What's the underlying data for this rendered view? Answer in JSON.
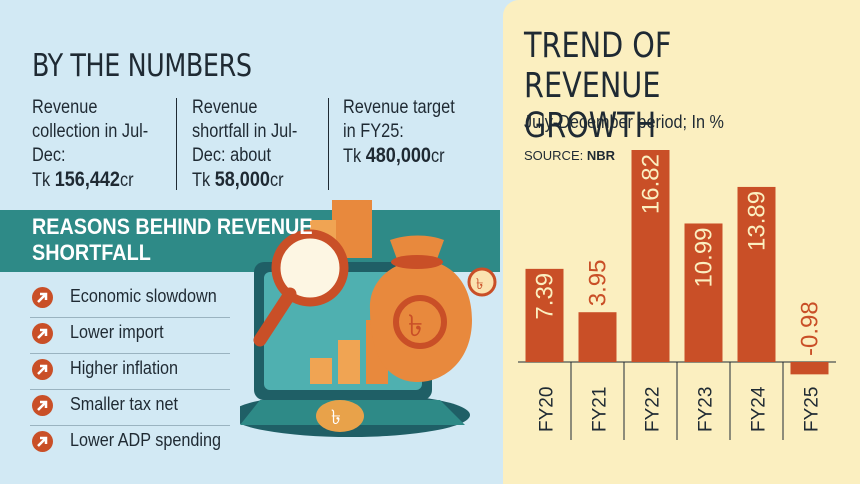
{
  "left": {
    "heading": "BY THE NUMBERS",
    "stats": [
      {
        "label": "Revenue collection in Jul-Dec:",
        "prefix": "Tk ",
        "amount": "156,442",
        "unit": "cr"
      },
      {
        "label": "Revenue shortfall in Jul-Dec: about",
        "prefix": "Tk ",
        "amount": "58,000",
        "unit": "cr"
      },
      {
        "label": "Revenue target in FY25:",
        "prefix": "Tk ",
        "amount": "480,000",
        "unit": "cr"
      }
    ],
    "reasons_heading": "REASONS BEHIND REVENUE SHORTFALL",
    "reasons": [
      "Economic slowdown",
      "Lower import",
      "Higher inflation",
      "Smaller tax net",
      "Lower ADP spending"
    ],
    "taka_symbol": "৳"
  },
  "colors": {
    "bar": "#c94f27",
    "panel": "#fbefc0",
    "teal": "#2e8a87",
    "background": "#d2e9f4",
    "text": "#1f2a33"
  },
  "chart_data": {
    "type": "bar",
    "title": "TREND OF REVENUE GROWTH",
    "subtitle": "July-December period; In %",
    "source_label": "SOURCE:",
    "source": "NBR",
    "categories": [
      "FY20",
      "FY21",
      "FY22",
      "FY23",
      "FY24",
      "FY25"
    ],
    "values": [
      7.39,
      3.95,
      16.82,
      10.99,
      13.89,
      -0.98
    ],
    "value_labels": [
      "7.39",
      "3.95",
      "16.82",
      "10.99",
      "13.89",
      "-0.98"
    ],
    "ylim": [
      -0.98,
      16.82
    ],
    "label_orientation": "vertical",
    "grid": false,
    "legend": "none"
  }
}
